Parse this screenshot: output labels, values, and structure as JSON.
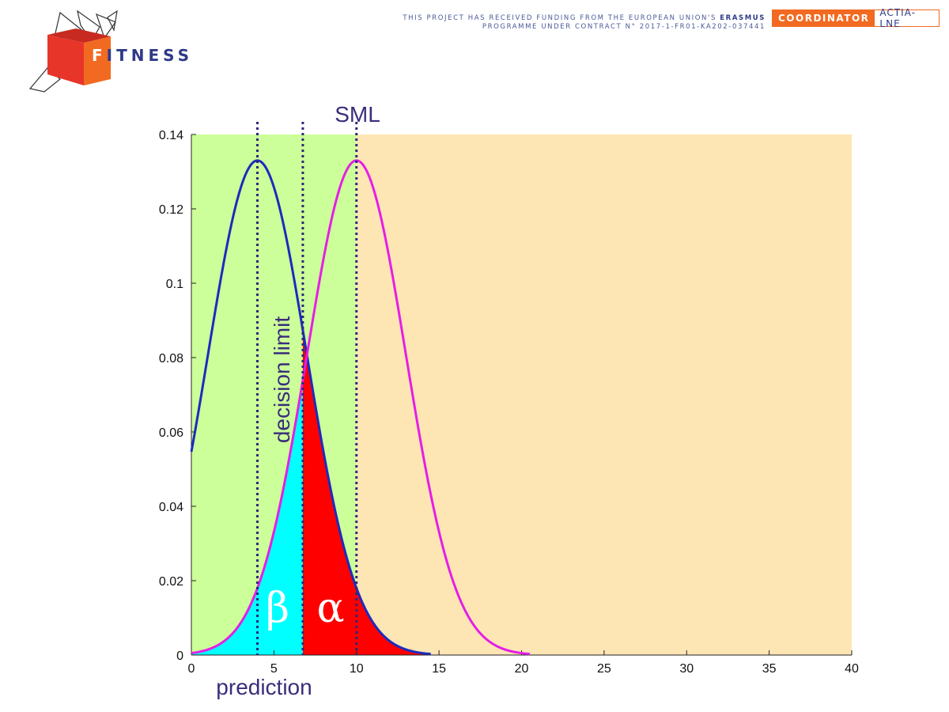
{
  "header": {
    "brand_initial": "F",
    "brand_rest": "ITNESS",
    "funding_line1_prefix": "THIS PROJECT HAS RECEIVED FUNDING FROM THE EUROPEAN UNION'S",
    "funding_line1_bold": "ERASMUS",
    "funding_line2": "PROGRAMME UNDER CONTRACT N° 2017-1-FR01-KA202-037441",
    "coordinator_label": "COORDINATOR",
    "coordinator_name": "ACTIA-LNE",
    "colors": {
      "brand_orange": "#f26a21",
      "brand_red": "#e8352a",
      "brand_navy": "#2e3a87"
    }
  },
  "chart_data": {
    "type": "line",
    "title": "",
    "xlabel": "",
    "ylabel": "",
    "xlim": [
      0,
      40
    ],
    "ylim": [
      0,
      0.14
    ],
    "x_ticks": [
      0,
      5,
      10,
      15,
      20,
      25,
      30,
      35,
      40
    ],
    "x_tick_labels": [
      "0",
      "5",
      "10",
      "15",
      "20",
      "25",
      "30",
      "35",
      "40"
    ],
    "y_ticks": [
      0,
      0.02,
      0.04,
      0.06,
      0.08,
      0.1,
      0.12,
      0.14
    ],
    "y_tick_labels": [
      "0",
      "0.02",
      "0.04",
      "0.06",
      "0.08",
      "0.1",
      "0.12",
      "0.14"
    ],
    "grid": false,
    "series": [
      {
        "color": "#1c2bbf",
        "distribution": "normal",
        "mean": 4,
        "sd": 3,
        "peak": 0.133,
        "x_range": [
          0,
          14.5
        ]
      },
      {
        "color": "#e61ee6",
        "distribution": "normal",
        "mean": 10,
        "sd": 3,
        "peak": 0.133,
        "x_range": [
          0,
          20.5
        ]
      }
    ],
    "vertical_lines": [
      {
        "x": 4,
        "label": "prediction",
        "style": "dotted",
        "color": "#2a2a7a"
      },
      {
        "x": 6.75,
        "label": "decision limit",
        "style": "dotted",
        "color": "#2a2a7a"
      },
      {
        "x": 10,
        "label": "SML",
        "style": "dotted",
        "color": "#2a2a7a"
      }
    ],
    "background_regions": [
      {
        "x_range": [
          0,
          10
        ],
        "color": "#ccff99"
      },
      {
        "x_range": [
          10,
          40
        ],
        "color": "#fde6b4"
      }
    ],
    "shaded_areas": [
      {
        "label": "β",
        "x_range": [
          0,
          6.75
        ],
        "under_series": 1,
        "color": "#00ffff"
      },
      {
        "label": "α",
        "x_range": [
          6.75,
          14.5
        ],
        "under_series": 0,
        "color": "#ff0000"
      }
    ],
    "annotations": {
      "beta": "β",
      "alpha": "α",
      "sml": "SML",
      "decision_limit": "decision limit",
      "prediction": "prediction"
    }
  }
}
